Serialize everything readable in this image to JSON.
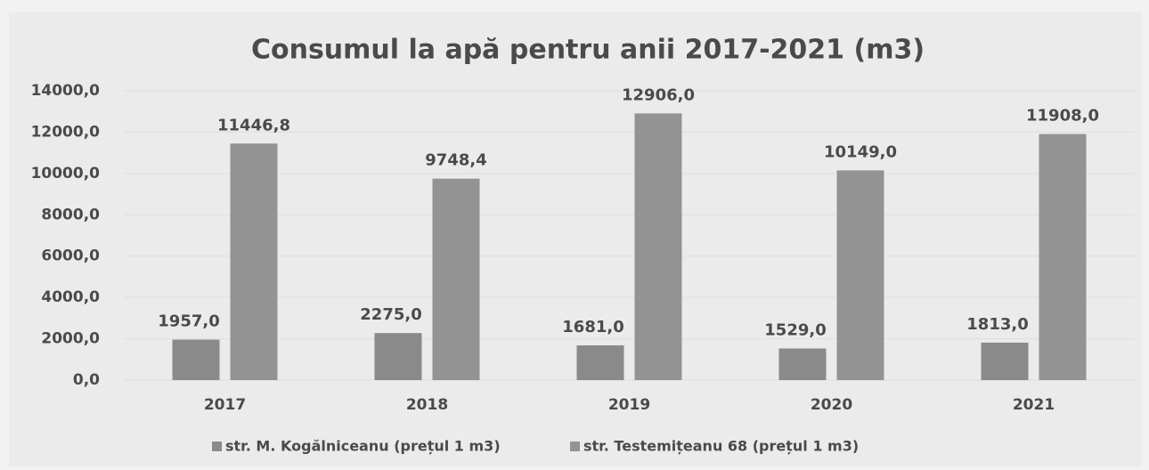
{
  "chart_data": {
    "type": "bar",
    "title": "Consumul la apă pentru anii 2017-2021 (m3)",
    "categories": [
      "2017",
      "2018",
      "2019",
      "2020",
      "2021"
    ],
    "series": [
      {
        "name": "str. M. Kogălniceanu (prețul 1 m3)",
        "color": "#8a8a8a",
        "values": [
          1957.0,
          2275.0,
          1681.0,
          1529.0,
          1813.0
        ],
        "value_labels": [
          "1957,0",
          "2275,0",
          "1681,0",
          "1529,0",
          "1813,0"
        ]
      },
      {
        "name": "str. Testemițeanu 68 (prețul 1 m3)",
        "color": "#939393",
        "values": [
          11446.8,
          9748.4,
          12906.0,
          10149.0,
          11908.0
        ],
        "value_labels": [
          "11446,8",
          "9748,4",
          "12906,0",
          "10149,0",
          "11908,0"
        ]
      }
    ],
    "ylim": [
      0,
      14000
    ],
    "yticks": [
      {
        "value": 0,
        "label": "0,0"
      },
      {
        "value": 2000,
        "label": "2000,0"
      },
      {
        "value": 4000,
        "label": "4000,0"
      },
      {
        "value": 6000,
        "label": "6000,0"
      },
      {
        "value": 8000,
        "label": "8000,0"
      },
      {
        "value": 10000,
        "label": "10000,0"
      },
      {
        "value": 12000,
        "label": "12000,0"
      },
      {
        "value": 14000,
        "label": "14000,0"
      }
    ],
    "grid": true,
    "legend": "bottom"
  }
}
